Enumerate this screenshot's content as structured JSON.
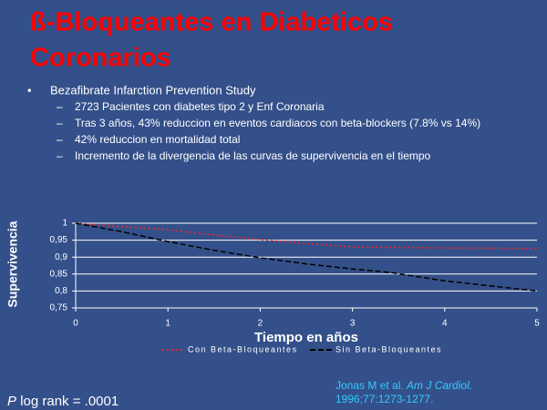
{
  "slide": {
    "title_lines": [
      "ß-Bloqueantes en Diabeticos",
      "Coronarios"
    ],
    "bullet": "Bezafibrate Infarction Prevention Study",
    "sub_bullets": [
      "2723 Pacientes con diabetes tipo 2 y Enf Coronaria",
      "Tras 3 años, 43% reduccion en eventos cardiacos con beta-blockers (7.8% vs 14%)",
      "42% reduccion en mortalidad total",
      "Incremento de la divergencia de las curvas de supervivencia en el tiempo"
    ],
    "footnote_italic": "P",
    "footnote": "log rank = .0001",
    "citation_authors": "Jonas M et al.",
    "citation_journal": "Am J Cardiol.",
    "citation_ref": "1996;77:1273-1277."
  },
  "chart_data": {
    "type": "line",
    "x_label": "Tiempo en años",
    "y_label": "Supervivencia",
    "xlim": [
      0,
      5
    ],
    "xticks": [
      0,
      1,
      2,
      3,
      4,
      5
    ],
    "ylim": [
      0.75,
      1
    ],
    "yticks": [
      {
        "value": 0.75,
        "label": "0,75"
      },
      {
        "value": 0.8,
        "label": "0,8"
      },
      {
        "value": 0.85,
        "label": "0,85"
      },
      {
        "value": 0.9,
        "label": "0,9"
      },
      {
        "value": 0.95,
        "label": "0,95"
      },
      {
        "value": 1,
        "label": "1"
      }
    ],
    "grid": true,
    "series": [
      {
        "name": "Con Beta-Bloqueantes",
        "color": "#ff2020",
        "dash": "2,3",
        "x": [
          0,
          0.5,
          1,
          1.5,
          2,
          2.5,
          3,
          4,
          5
        ],
        "values": [
          1,
          0.99,
          0.981,
          0.965,
          0.952,
          0.94,
          0.93,
          0.927,
          0.925
        ]
      },
      {
        "name": "Sin Beta-Bloqueantes",
        "color": "#000000",
        "dash": "6,3",
        "x": [
          0,
          0.5,
          1,
          1.5,
          2,
          2.5,
          3,
          3.4,
          4,
          5
        ],
        "values": [
          1,
          0.975,
          0.946,
          0.92,
          0.898,
          0.88,
          0.865,
          0.855,
          0.83,
          0.8
        ]
      }
    ]
  }
}
